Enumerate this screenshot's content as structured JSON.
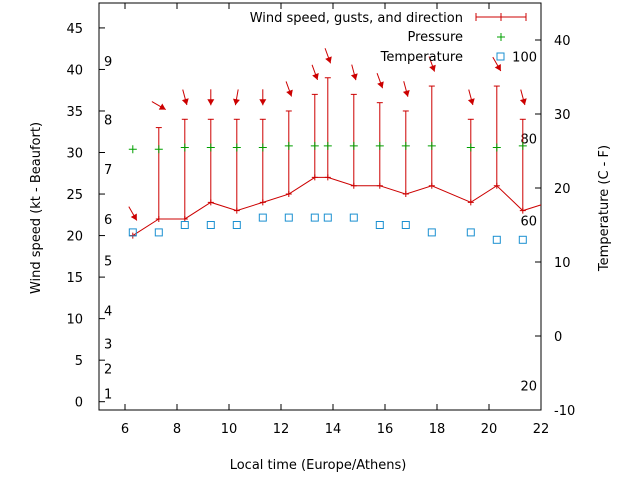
{
  "chart_data": {
    "type": "line",
    "xlabel": "Local time (Europe/Athens)",
    "ylabel": "Wind speed (kt - Beaufort)",
    "y2label": "Temperature (C - F)",
    "xlim": [
      5,
      22
    ],
    "ylim": [
      -1,
      48
    ],
    "y2lim": [
      -10,
      45
    ],
    "legend_position": "top-right",
    "legend": {
      "wind": "Wind speed, gusts, and direction",
      "pressure": "Pressure",
      "temperature": "Temperature"
    },
    "x_ticks": [
      6,
      8,
      10,
      12,
      14,
      16,
      18,
      20,
      22
    ],
    "y_ticks": [
      0,
      5,
      10,
      15,
      20,
      25,
      30,
      35,
      40,
      45
    ],
    "y2_ticks": [
      -10,
      0,
      10,
      20,
      30,
      40
    ],
    "beaufort_labels": [
      {
        "label": "1",
        "value": 1
      },
      {
        "label": "2",
        "value": 4
      },
      {
        "label": "3",
        "value": 7
      },
      {
        "label": "4",
        "value": 11
      },
      {
        "label": "5",
        "value": 17
      },
      {
        "label": "6",
        "value": 22
      },
      {
        "label": "7",
        "value": 28
      },
      {
        "label": "8",
        "value": 34
      },
      {
        "label": "9",
        "value": 41
      }
    ],
    "fahrenheit_labels": [
      {
        "label": "20",
        "celsius": -6.7
      },
      {
        "label": "60",
        "celsius": 15.6
      },
      {
        "label": "80",
        "celsius": 26.7
      },
      {
        "label": "100",
        "celsius": 37.8
      }
    ],
    "series": [
      {
        "name": "Wind speed",
        "color": "#cc0000",
        "points": [
          {
            "x": 6.3,
            "y": 20,
            "gust": 20,
            "dir": 330
          },
          {
            "x": 7.3,
            "y": 22,
            "gust": 33,
            "dir": 300
          },
          {
            "x": 8.3,
            "y": 22,
            "gust": 34,
            "dir": 345
          },
          {
            "x": 9.3,
            "y": 24,
            "gust": 34,
            "dir": 0
          },
          {
            "x": 10.3,
            "y": 23,
            "gust": 34,
            "dir": 10
          },
          {
            "x": 11.3,
            "y": 24,
            "gust": 34,
            "dir": 0
          },
          {
            "x": 12.3,
            "y": 25,
            "gust": 35,
            "dir": 340
          },
          {
            "x": 13.3,
            "y": 27,
            "gust": 37,
            "dir": 340
          },
          {
            "x": 13.8,
            "y": 27,
            "gust": 39,
            "dir": 340
          },
          {
            "x": 14.8,
            "y": 26,
            "gust": 37,
            "dir": 345
          },
          {
            "x": 15.8,
            "y": 26,
            "gust": 36,
            "dir": 340
          },
          {
            "x": 16.8,
            "y": 25,
            "gust": 35,
            "dir": 345
          },
          {
            "x": 17.8,
            "y": 26,
            "gust": 38,
            "dir": 340
          },
          {
            "x": 19.3,
            "y": 24,
            "gust": 34,
            "dir": 345
          },
          {
            "x": 20.3,
            "y": 26,
            "gust": 38,
            "dir": 330
          },
          {
            "x": 21.3,
            "y": 23,
            "gust": 34,
            "dir": 345
          },
          {
            "x": 22.0,
            "y": 23.7,
            "gust": null,
            "dir": null
          }
        ]
      },
      {
        "name": "Pressure",
        "color": "#00a000",
        "points": [
          {
            "x": 6.3,
            "y": 30.4
          },
          {
            "x": 7.3,
            "y": 30.4
          },
          {
            "x": 8.3,
            "y": 30.6
          },
          {
            "x": 9.3,
            "y": 30.6
          },
          {
            "x": 10.3,
            "y": 30.6
          },
          {
            "x": 11.3,
            "y": 30.6
          },
          {
            "x": 12.3,
            "y": 30.8
          },
          {
            "x": 13.3,
            "y": 30.8
          },
          {
            "x": 13.8,
            "y": 30.8
          },
          {
            "x": 14.8,
            "y": 30.8
          },
          {
            "x": 15.8,
            "y": 30.8
          },
          {
            "x": 16.8,
            "y": 30.8
          },
          {
            "x": 17.8,
            "y": 30.8
          },
          {
            "x": 19.3,
            "y": 30.6
          },
          {
            "x": 20.3,
            "y": 30.6
          },
          {
            "x": 21.3,
            "y": 30.8
          }
        ]
      },
      {
        "name": "Temperature",
        "color": "#1a8fd0",
        "axis": "y2",
        "points": [
          {
            "x": 6.3,
            "y": 14
          },
          {
            "x": 7.3,
            "y": 14
          },
          {
            "x": 8.3,
            "y": 15
          },
          {
            "x": 9.3,
            "y": 15
          },
          {
            "x": 10.3,
            "y": 15
          },
          {
            "x": 11.3,
            "y": 16
          },
          {
            "x": 12.3,
            "y": 16
          },
          {
            "x": 13.3,
            "y": 16
          },
          {
            "x": 13.8,
            "y": 16
          },
          {
            "x": 14.8,
            "y": 16
          },
          {
            "x": 15.8,
            "y": 15
          },
          {
            "x": 16.8,
            "y": 15
          },
          {
            "x": 17.8,
            "y": 14
          },
          {
            "x": 19.3,
            "y": 14
          },
          {
            "x": 20.3,
            "y": 13
          },
          {
            "x": 21.3,
            "y": 13
          }
        ]
      }
    ]
  }
}
